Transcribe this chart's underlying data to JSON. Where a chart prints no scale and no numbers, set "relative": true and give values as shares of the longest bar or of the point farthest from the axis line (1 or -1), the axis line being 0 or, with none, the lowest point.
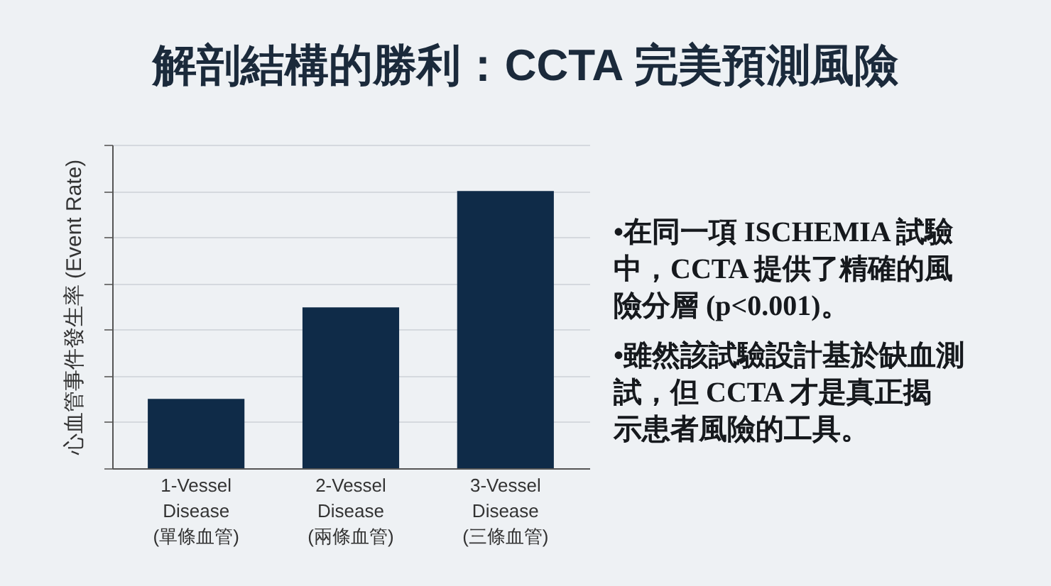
{
  "chart_data": {
    "type": "bar",
    "title": "解剖結構的勝利：CCTA 完美預測風險",
    "ylabel": "心血管事件發生率 (Event Rate)",
    "categories": [
      "1-Vessel Disease (單條血管)",
      "2-Vessel Disease (兩條血管)",
      "3-Vessel Disease (三條血管)"
    ],
    "values": [
      0.25,
      0.58,
      1
    ],
    "color": "#0f2b48",
    "relative": true,
    "grid": "y",
    "tick_labels": "x",
    "annotations": [
      "•在同一項 ISCHEMIA 試驗中，CCTA 提供了精確的風險分層 (p<0.001)。",
      "•雖然該試驗設計基於缺血測試，但 CCTA 才是真正揭示患者風險的工具。"
    ]
  }
}
